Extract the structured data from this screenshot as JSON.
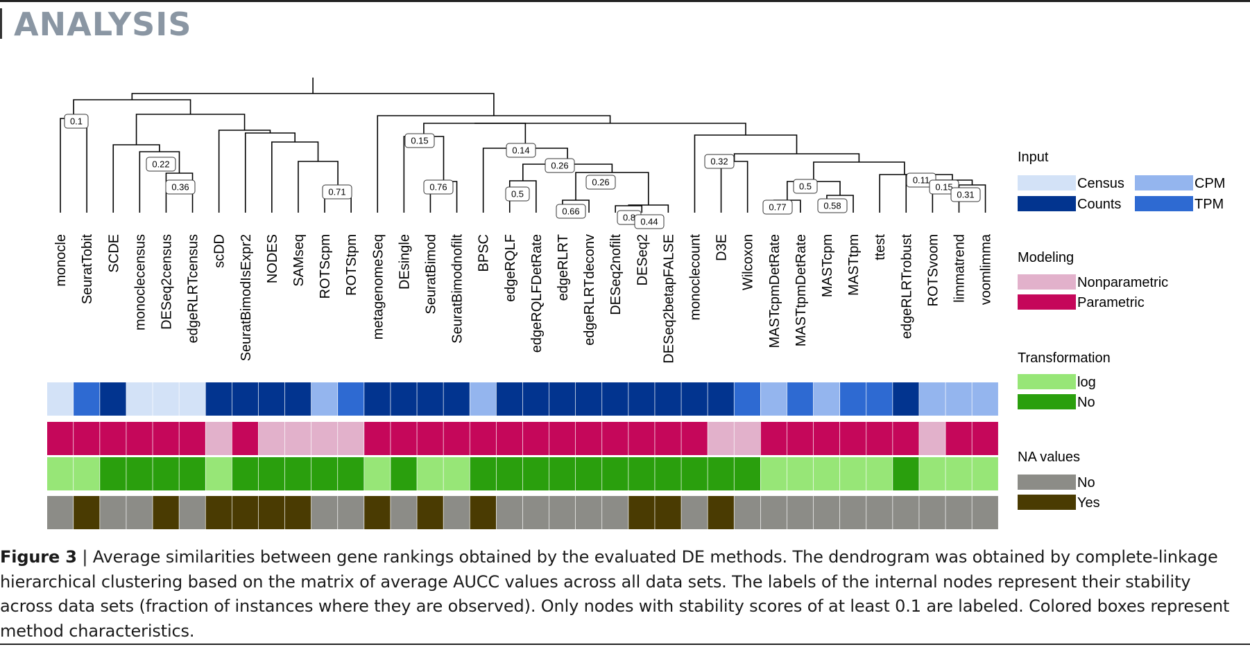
{
  "header": {
    "section_title": "ANALYSIS"
  },
  "leaves": [
    "monocle",
    "SeuratTobit",
    "SCDE",
    "monoclecensus",
    "DESeq2census",
    "edgeRLRTcensus",
    "scDD",
    "SeuratBimodIsExpr2",
    "NODES",
    "SAMseq",
    "ROTScpm",
    "ROTStpm",
    "metagenomeSeq",
    "DEsingle",
    "SeuratBimod",
    "SeuratBimodnofilt",
    "BPSC",
    "edgeRQLF",
    "edgeRQLFDetRate",
    "edgeRLRT",
    "edgeRLRTdeconv",
    "DESeq2nofilt",
    "DESeq2",
    "DESeq2betapFALSE",
    "monoclecount",
    "D3E",
    "Wilcoxon",
    "MASTcpmDetRate",
    "MASTtpmDetRate",
    "MASTcpm",
    "MASTtpm",
    "ttest",
    "edgeRLRTrobust",
    "ROTSvoom",
    "limmatrend",
    "voomlimma"
  ],
  "node_labels": [
    "0.1",
    "0.22",
    "0.36",
    "0.71",
    "0.15",
    "0.76",
    "0.14",
    "0.26",
    "0.5",
    "0.26",
    "0.66",
    "0.8",
    "0.44",
    "0.32",
    "0.5",
    "0.77",
    "0.58",
    "0.11",
    "0.15",
    "0.31"
  ],
  "annotation": {
    "input": [
      "Census",
      "TPM",
      "Counts",
      "Census",
      "Census",
      "Census",
      "Counts",
      "Counts",
      "Counts",
      "Counts",
      "CPM",
      "TPM",
      "Counts",
      "Counts",
      "Counts",
      "Counts",
      "CPM",
      "Counts",
      "Counts",
      "Counts",
      "Counts",
      "Counts",
      "Counts",
      "Counts",
      "Counts",
      "Counts",
      "TPM",
      "CPM",
      "TPM",
      "CPM",
      "TPM",
      "TPM",
      "Counts",
      "CPM",
      "CPM",
      "CPM"
    ],
    "modeling": [
      "Parametric",
      "Parametric",
      "Parametric",
      "Parametric",
      "Parametric",
      "Parametric",
      "Nonparametric",
      "Parametric",
      "Nonparametric",
      "Nonparametric",
      "Nonparametric",
      "Nonparametric",
      "Parametric",
      "Parametric",
      "Parametric",
      "Parametric",
      "Parametric",
      "Parametric",
      "Parametric",
      "Parametric",
      "Parametric",
      "Parametric",
      "Parametric",
      "Parametric",
      "Parametric",
      "Nonparametric",
      "Nonparametric",
      "Parametric",
      "Parametric",
      "Parametric",
      "Parametric",
      "Parametric",
      "Parametric",
      "Nonparametric",
      "Parametric",
      "Parametric"
    ],
    "transformation": [
      "log",
      "log",
      "No",
      "No",
      "No",
      "No",
      "log",
      "No",
      "No",
      "No",
      "No",
      "No",
      "log",
      "No",
      "log",
      "log",
      "No",
      "No",
      "No",
      "No",
      "No",
      "No",
      "No",
      "No",
      "No",
      "No",
      "No",
      "log",
      "log",
      "log",
      "log",
      "log",
      "No",
      "log",
      "log",
      "log"
    ],
    "na_values": [
      "No",
      "Yes",
      "No",
      "No",
      "Yes",
      "No",
      "Yes",
      "Yes",
      "Yes",
      "Yes",
      "No",
      "No",
      "Yes",
      "No",
      "Yes",
      "No",
      "Yes",
      "No",
      "No",
      "No",
      "No",
      "No",
      "Yes",
      "Yes",
      "No",
      "Yes",
      "No",
      "No",
      "No",
      "No",
      "No",
      "No",
      "No",
      "No",
      "No",
      "No"
    ]
  },
  "legend": {
    "input": {
      "title": "Input",
      "items": [
        {
          "label": "Census",
          "color": "#d3e2f7"
        },
        {
          "label": "Counts",
          "color": "#02348f"
        },
        {
          "label": "CPM",
          "color": "#94b5ee"
        },
        {
          "label": "TPM",
          "color": "#2e6ad2"
        }
      ]
    },
    "modeling": {
      "title": "Modeling",
      "items": [
        {
          "label": "Nonparametric",
          "color": "#e2b1cb"
        },
        {
          "label": "Parametric",
          "color": "#c5075a"
        }
      ]
    },
    "transformation": {
      "title": "Transformation",
      "items": [
        {
          "label": "log",
          "color": "#97e677"
        },
        {
          "label": "No",
          "color": "#2a9f0d"
        }
      ]
    },
    "na_values": {
      "title": "NA values",
      "items": [
        {
          "label": "No",
          "color": "#8c8c87"
        },
        {
          "label": "Yes",
          "color": "#4a3b02"
        }
      ]
    }
  },
  "caption": {
    "label": "Figure 3",
    "separator": " | ",
    "text": "Average similarities between gene rankings obtained by the evaluated DE methods. The dendrogram was obtained by complete-linkage hierarchical clustering based on the matrix of average AUCC values across all data sets. The labels of the internal nodes represent their stability across data sets (fraction of instances where they are observed). Only nodes with stability scores of at least 0.1 are labeled. Colored boxes represent method characteristics."
  }
}
